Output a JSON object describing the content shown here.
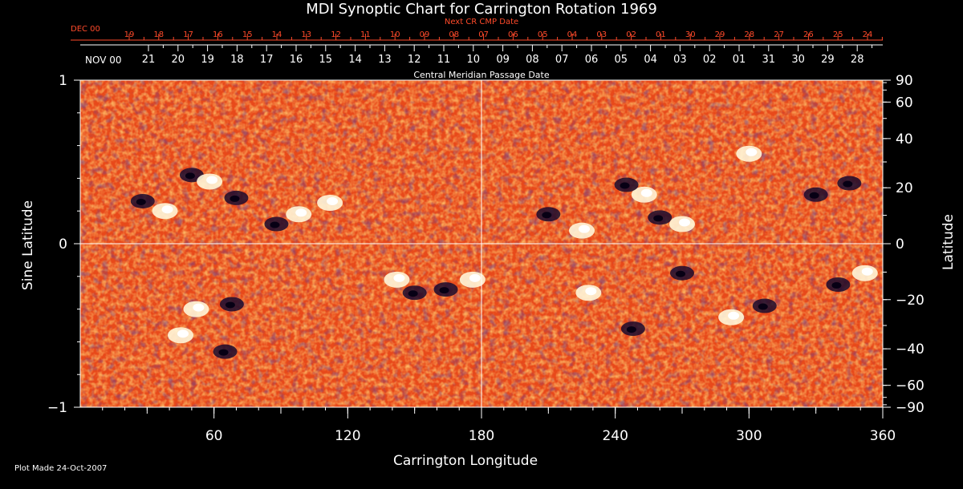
{
  "title": "MDI Synoptic Chart for Carrington Rotation 1969",
  "colors": {
    "background": "#000000",
    "top_axis_red": "#ff4a2a",
    "axis": "#ffffff",
    "map_base": "#e8491a"
  },
  "top_axis": {
    "next_title": "Next CR CMP Date",
    "month_label_next": "DEC 00",
    "next_dates": [
      "19",
      "18",
      "17",
      "16",
      "15",
      "14",
      "13",
      "12",
      "11",
      "10",
      "09",
      "08",
      "07",
      "06",
      "05",
      "04",
      "03",
      "02",
      "01",
      "30",
      "29",
      "28",
      "27",
      "26",
      "25",
      "24"
    ],
    "cmp_title": "Central Meridian Passage Date",
    "month_label_cmp": "NOV 00",
    "cmp_dates": [
      "21",
      "20",
      "19",
      "18",
      "17",
      "16",
      "15",
      "14",
      "13",
      "12",
      "11",
      "10",
      "09",
      "08",
      "07",
      "06",
      "05",
      "04",
      "03",
      "02",
      "01",
      "31",
      "30",
      "29",
      "28"
    ]
  },
  "footer": "Plot Made 24-Oct-2007",
  "chart_data": {
    "type": "heatmap",
    "title": "MDI Synoptic Chart for Carrington Rotation 1969",
    "xlabel": "Carrington Longitude",
    "ylabel_left": "Sine Latitude",
    "ylabel_right": "Latitude",
    "xlim": [
      0,
      360
    ],
    "ylim": [
      -1,
      1
    ],
    "x_ticks": [
      60,
      120,
      180,
      240,
      300,
      360
    ],
    "y_ticks_left": [
      "1",
      "0",
      "−1"
    ],
    "y_ticks_right": [
      "90",
      "60",
      "40",
      "20",
      "0",
      "−20",
      "−40",
      "−60",
      "−90"
    ],
    "y_ticks_right_values": [
      90,
      60,
      40,
      20,
      0,
      -20,
      -40,
      -60,
      -90
    ],
    "crosshair": {
      "longitude": 180,
      "sine_latitude": 0
    },
    "regions": [
      {
        "lon": 50,
        "sinlat": 0.42,
        "polarity": "negative"
      },
      {
        "lon": 58,
        "sinlat": 0.38,
        "polarity": "positive"
      },
      {
        "lon": 28,
        "sinlat": 0.26,
        "polarity": "negative"
      },
      {
        "lon": 38,
        "sinlat": 0.2,
        "polarity": "positive"
      },
      {
        "lon": 70,
        "sinlat": 0.28,
        "polarity": "negative"
      },
      {
        "lon": 98,
        "sinlat": 0.18,
        "polarity": "positive"
      },
      {
        "lon": 88,
        "sinlat": 0.12,
        "polarity": "negative"
      },
      {
        "lon": 112,
        "sinlat": 0.25,
        "polarity": "positive"
      },
      {
        "lon": 150,
        "sinlat": -0.3,
        "polarity": "negative"
      },
      {
        "lon": 142,
        "sinlat": -0.22,
        "polarity": "positive"
      },
      {
        "lon": 164,
        "sinlat": -0.28,
        "polarity": "negative"
      },
      {
        "lon": 176,
        "sinlat": -0.22,
        "polarity": "positive"
      },
      {
        "lon": 52,
        "sinlat": -0.4,
        "polarity": "positive"
      },
      {
        "lon": 68,
        "sinlat": -0.37,
        "polarity": "negative"
      },
      {
        "lon": 45,
        "sinlat": -0.56,
        "polarity": "positive"
      },
      {
        "lon": 65,
        "sinlat": -0.66,
        "polarity": "negative"
      },
      {
        "lon": 253,
        "sinlat": 0.3,
        "polarity": "positive"
      },
      {
        "lon": 260,
        "sinlat": 0.16,
        "polarity": "negative"
      },
      {
        "lon": 270,
        "sinlat": 0.12,
        "polarity": "positive"
      },
      {
        "lon": 245,
        "sinlat": 0.36,
        "polarity": "negative"
      },
      {
        "lon": 210,
        "sinlat": 0.18,
        "polarity": "negative"
      },
      {
        "lon": 225,
        "sinlat": 0.08,
        "polarity": "positive"
      },
      {
        "lon": 270,
        "sinlat": -0.18,
        "polarity": "negative"
      },
      {
        "lon": 292,
        "sinlat": -0.45,
        "polarity": "positive"
      },
      {
        "lon": 307,
        "sinlat": -0.38,
        "polarity": "negative"
      },
      {
        "lon": 248,
        "sinlat": -0.52,
        "polarity": "negative"
      },
      {
        "lon": 228,
        "sinlat": -0.3,
        "polarity": "positive"
      },
      {
        "lon": 340,
        "sinlat": -0.25,
        "polarity": "negative"
      },
      {
        "lon": 352,
        "sinlat": -0.18,
        "polarity": "positive"
      },
      {
        "lon": 345,
        "sinlat": 0.37,
        "polarity": "negative"
      },
      {
        "lon": 300,
        "sinlat": 0.55,
        "polarity": "positive"
      },
      {
        "lon": 330,
        "sinlat": 0.3,
        "polarity": "negative"
      }
    ]
  }
}
